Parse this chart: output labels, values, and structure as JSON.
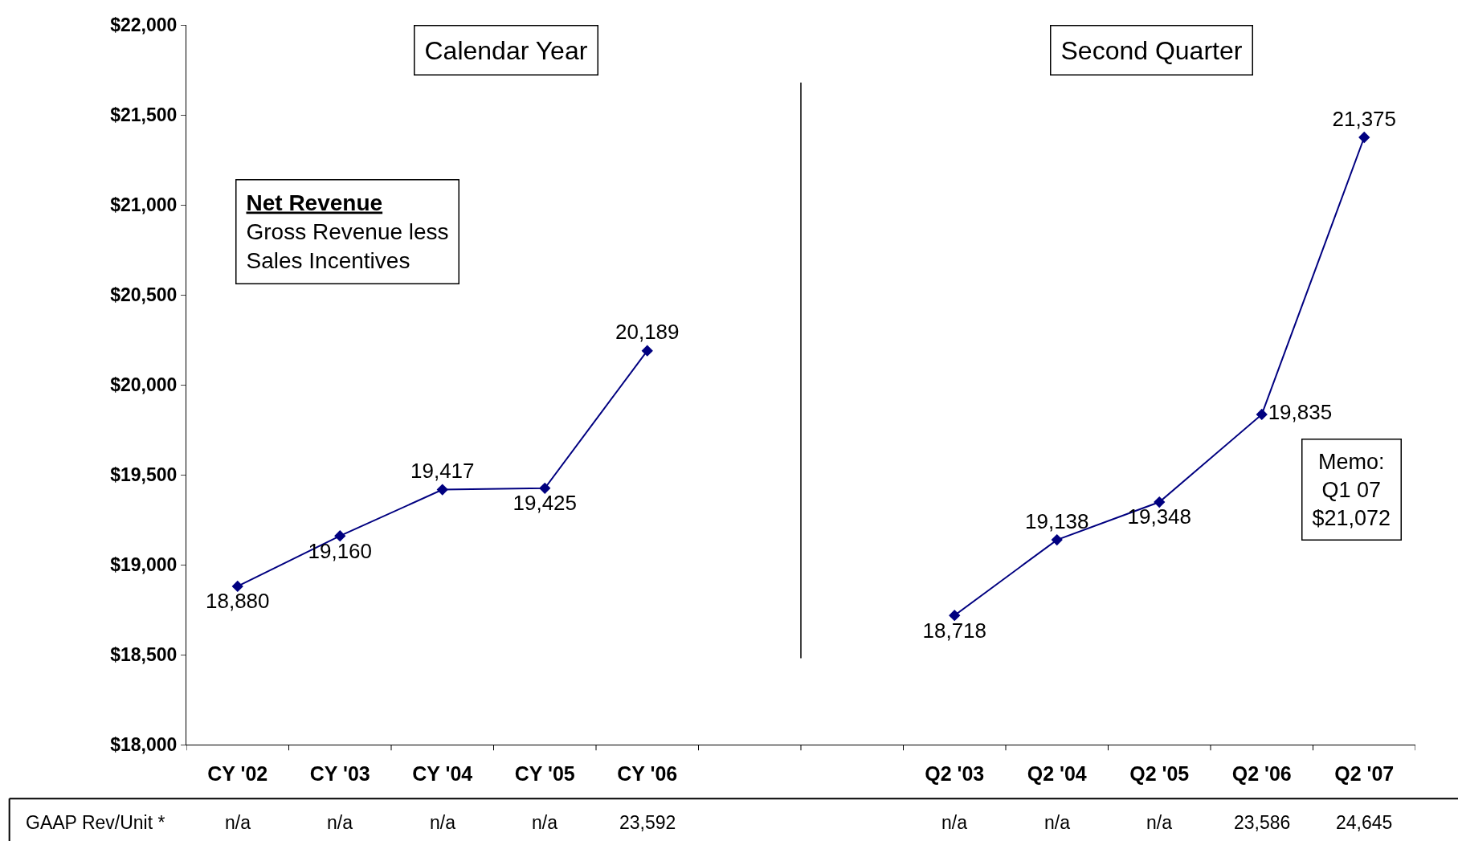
{
  "chart_data": {
    "type": "line",
    "categories": [
      "CY '02",
      "CY '03",
      "CY '04",
      "CY '05",
      "CY '06",
      null,
      null,
      "Q2 '03",
      "Q2 '04",
      "Q2 '05",
      "Q2 '06",
      "Q2 '07"
    ],
    "series": [
      {
        "color": "#000080",
        "values": [
          18880,
          19160,
          19417,
          19425,
          20189,
          null,
          null,
          18718,
          19138,
          19348,
          19835,
          21375
        ]
      }
    ],
    "value_labels": [
      "18,880",
      "19,160",
      "19,417",
      "19,425",
      "20,189",
      null,
      null,
      "18,718",
      "19,138",
      "19,348",
      "19,835",
      "21,375"
    ],
    "marker": "diamond",
    "grid": false,
    "ylim": [
      18000,
      22000
    ],
    "yticks": [
      {
        "value": 18000,
        "label": "$18,000"
      },
      {
        "value": 18500,
        "label": "$18,500"
      },
      {
        "value": 19000,
        "label": "$19,000"
      },
      {
        "value": 19500,
        "label": "$19,500"
      },
      {
        "value": 20000,
        "label": "$20,000"
      },
      {
        "value": 20500,
        "label": "$20,500"
      },
      {
        "value": 21000,
        "label": "$21,000"
      },
      {
        "value": 21500,
        "label": "$21,500"
      },
      {
        "value": 22000,
        "label": "$22,000"
      }
    ],
    "annotations": [
      "Calendar Year",
      "Second Quarter",
      "Net Revenue\nGross Revenue less\nSales Incentives",
      "Memo:\nQ1 07\n$21,072",
      "GAAP Rev/Unit *",
      "n/a",
      "n/a",
      "n/a",
      "n/a",
      "23,592",
      "n/a",
      "n/a",
      "n/a",
      "23,586",
      "24,645"
    ]
  }
}
